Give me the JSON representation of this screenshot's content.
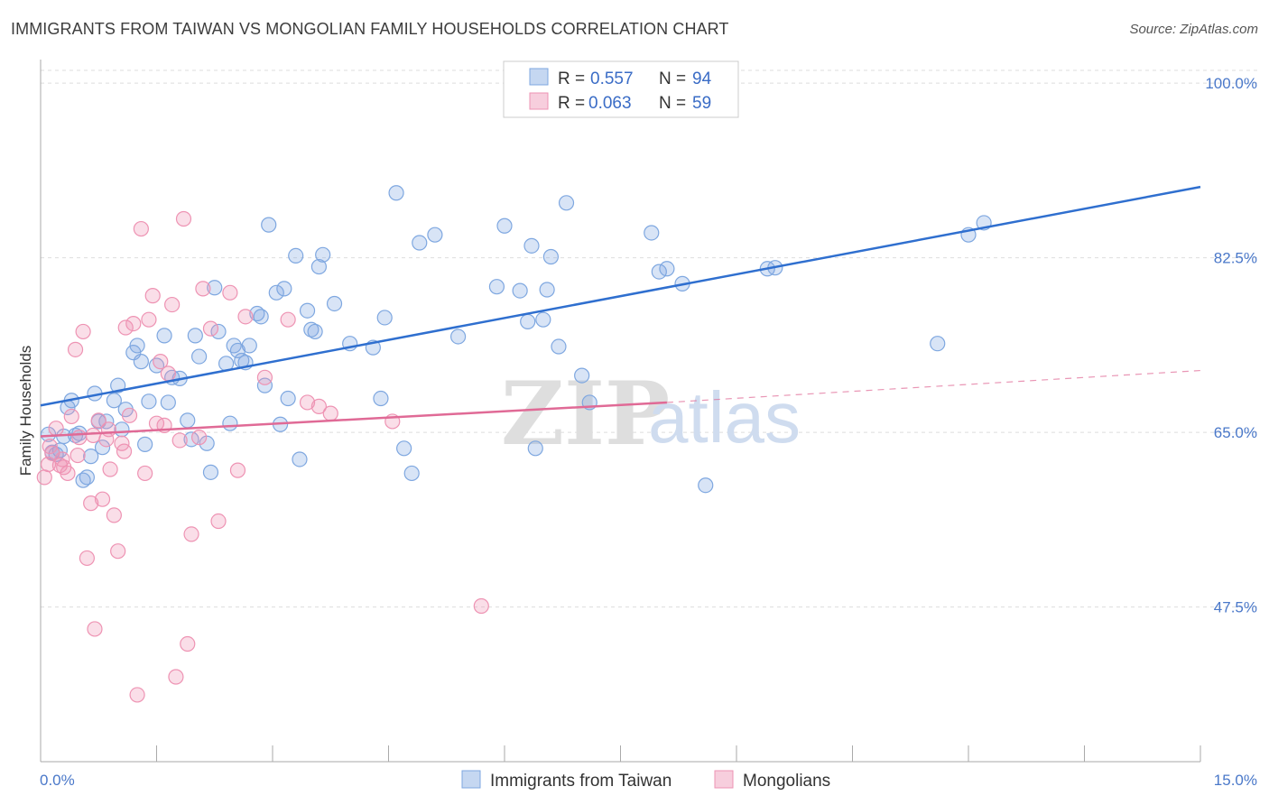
{
  "title": "IMMIGRANTS FROM TAIWAN VS MONGOLIAN FAMILY HOUSEHOLDS CORRELATION CHART",
  "source": "Source: ZipAtlas.com",
  "watermark": {
    "zip": "ZIP",
    "atlas": "atlas"
  },
  "colors": {
    "blue": "#7ea7e0",
    "blue_fill": "rgba(126,167,224,0.30)",
    "blue_line": "#2f6fcf",
    "pink": "#ee93b3",
    "pink_fill": "rgba(238,147,179,0.30)",
    "pink_line": "#e06a96",
    "grid": "#dddddd",
    "tick_label": "#4a78c9"
  },
  "legend": {
    "rows": [
      {
        "r_label": "R = ",
        "r_value": "0.557",
        "n_label": "N = ",
        "n_value": "94"
      },
      {
        "r_label": "R = ",
        "r_value": "0.063",
        "n_label": "N = ",
        "n_value": "59"
      }
    ]
  },
  "bottom_legend": [
    "Immigrants from Taiwan",
    "Mongolians"
  ],
  "chart_data": {
    "type": "scatter",
    "title": "IMMIGRANTS FROM TAIWAN VS MONGOLIAN FAMILY HOUSEHOLDS CORRELATION CHART",
    "xlabel": "",
    "ylabel": "Family Households",
    "xlim": [
      0,
      15
    ],
    "ylim": [
      32,
      102
    ],
    "x_tick_labels": [
      "0.0%",
      "15.0%"
    ],
    "y_ticks": [
      47.5,
      65.0,
      82.5,
      100.0
    ],
    "y_tick_labels": [
      "47.5%",
      "65.0%",
      "82.5%",
      "100.0%"
    ],
    "grid": "horizontal dashed",
    "legend_position": "top-center",
    "series": [
      {
        "name": "Immigrants from Taiwan",
        "r": 0.557,
        "n": 94,
        "trend": {
          "x": [
            0,
            15
          ],
          "y": [
            67.7,
            89.6
          ],
          "style": "solid"
        },
        "points": [
          [
            0.1,
            64.8
          ],
          [
            0.15,
            63.0
          ],
          [
            0.2,
            62.8
          ],
          [
            0.25,
            63.2
          ],
          [
            0.3,
            64.6
          ],
          [
            0.35,
            67.5
          ],
          [
            0.4,
            68.2
          ],
          [
            0.45,
            64.7
          ],
          [
            0.55,
            60.2
          ],
          [
            0.6,
            60.5
          ],
          [
            0.7,
            68.9
          ],
          [
            0.75,
            66.1
          ],
          [
            0.85,
            66.1
          ],
          [
            0.95,
            68.2
          ],
          [
            1.0,
            69.7
          ],
          [
            1.1,
            67.3
          ],
          [
            1.2,
            73.0
          ],
          [
            1.25,
            73.7
          ],
          [
            1.3,
            72.1
          ],
          [
            1.35,
            63.8
          ],
          [
            1.4,
            68.1
          ],
          [
            1.5,
            71.7
          ],
          [
            1.6,
            74.7
          ],
          [
            1.65,
            68.0
          ],
          [
            1.7,
            70.5
          ],
          [
            1.8,
            70.4
          ],
          [
            1.9,
            66.2
          ],
          [
            1.95,
            64.3
          ],
          [
            2.0,
            74.7
          ],
          [
            2.05,
            72.6
          ],
          [
            2.15,
            63.9
          ],
          [
            2.2,
            61.0
          ],
          [
            2.25,
            79.5
          ],
          [
            2.3,
            75.1
          ],
          [
            2.4,
            71.9
          ],
          [
            2.45,
            65.9
          ],
          [
            2.5,
            73.7
          ],
          [
            2.55,
            73.2
          ],
          [
            2.6,
            72.2
          ],
          [
            2.65,
            72.0
          ],
          [
            2.7,
            73.7
          ],
          [
            2.8,
            76.9
          ],
          [
            2.85,
            76.6
          ],
          [
            2.9,
            69.7
          ],
          [
            2.95,
            85.8
          ],
          [
            3.05,
            79.0
          ],
          [
            3.1,
            65.8
          ],
          [
            3.15,
            79.4
          ],
          [
            3.2,
            68.4
          ],
          [
            3.3,
            82.7
          ],
          [
            3.35,
            62.3
          ],
          [
            3.45,
            77.2
          ],
          [
            3.5,
            75.3
          ],
          [
            3.55,
            75.1
          ],
          [
            3.6,
            81.6
          ],
          [
            3.65,
            82.8
          ],
          [
            3.8,
            77.9
          ],
          [
            4.0,
            73.9
          ],
          [
            4.3,
            73.5
          ],
          [
            4.4,
            68.4
          ],
          [
            4.45,
            76.5
          ],
          [
            4.6,
            89.0
          ],
          [
            4.7,
            63.4
          ],
          [
            4.8,
            60.9
          ],
          [
            4.9,
            84.0
          ],
          [
            5.1,
            84.8
          ],
          [
            5.4,
            74.6
          ],
          [
            5.9,
            79.6
          ],
          [
            6.0,
            85.7
          ],
          [
            6.2,
            79.2
          ],
          [
            6.3,
            76.1
          ],
          [
            6.35,
            83.7
          ],
          [
            6.4,
            63.4
          ],
          [
            6.5,
            76.3
          ],
          [
            6.55,
            79.3
          ],
          [
            6.6,
            82.6
          ],
          [
            6.7,
            73.6
          ],
          [
            6.8,
            88.0
          ],
          [
            7.0,
            70.7
          ],
          [
            7.1,
            68.0
          ],
          [
            7.9,
            85.0
          ],
          [
            8.0,
            81.1
          ],
          [
            8.1,
            81.4
          ],
          [
            8.3,
            79.9
          ],
          [
            8.6,
            59.7
          ],
          [
            9.4,
            81.4
          ],
          [
            9.5,
            81.5
          ],
          [
            11.6,
            73.9
          ],
          [
            12.0,
            84.8
          ],
          [
            12.2,
            86.0
          ],
          [
            0.5,
            64.9
          ],
          [
            0.65,
            62.6
          ],
          [
            0.8,
            63.5
          ],
          [
            1.05,
            65.3
          ]
        ]
      },
      {
        "name": "Mongolians",
        "r": 0.063,
        "n": 59,
        "trend": {
          "x": [
            0,
            8.1
          ],
          "y": [
            64.6,
            68.0
          ],
          "style": "solid",
          "extended": {
            "x": [
              8.1,
              15
            ],
            "y": [
              68.0,
              71.2
            ],
            "style": "dashed"
          }
        },
        "points": [
          [
            0.05,
            60.5
          ],
          [
            0.1,
            61.8
          ],
          [
            0.15,
            62.9
          ],
          [
            0.2,
            65.4
          ],
          [
            0.25,
            61.7
          ],
          [
            0.3,
            61.5
          ],
          [
            0.35,
            60.9
          ],
          [
            0.4,
            66.6
          ],
          [
            0.45,
            73.3
          ],
          [
            0.5,
            64.5
          ],
          [
            0.55,
            75.1
          ],
          [
            0.6,
            52.4
          ],
          [
            0.65,
            57.9
          ],
          [
            0.7,
            45.3
          ],
          [
            0.75,
            66.2
          ],
          [
            0.8,
            58.3
          ],
          [
            0.85,
            64.3
          ],
          [
            0.9,
            61.3
          ],
          [
            0.95,
            56.7
          ],
          [
            1.0,
            53.1
          ],
          [
            1.05,
            63.9
          ],
          [
            1.1,
            75.5
          ],
          [
            1.15,
            66.7
          ],
          [
            1.2,
            75.9
          ],
          [
            1.25,
            38.7
          ],
          [
            1.3,
            85.4
          ],
          [
            1.35,
            60.9
          ],
          [
            1.4,
            76.3
          ],
          [
            1.45,
            78.7
          ],
          [
            1.5,
            65.9
          ],
          [
            1.55,
            72.1
          ],
          [
            1.6,
            65.7
          ],
          [
            1.65,
            70.9
          ],
          [
            1.7,
            77.8
          ],
          [
            1.75,
            40.5
          ],
          [
            1.8,
            64.2
          ],
          [
            1.85,
            86.4
          ],
          [
            1.9,
            43.8
          ],
          [
            1.95,
            54.8
          ],
          [
            2.05,
            64.5
          ],
          [
            2.1,
            79.4
          ],
          [
            2.2,
            75.4
          ],
          [
            2.3,
            56.1
          ],
          [
            2.45,
            79.0
          ],
          [
            2.55,
            61.2
          ],
          [
            2.65,
            76.6
          ],
          [
            2.9,
            70.5
          ],
          [
            3.2,
            76.3
          ],
          [
            3.45,
            68.0
          ],
          [
            3.6,
            67.6
          ],
          [
            3.75,
            66.9
          ],
          [
            4.55,
            66.1
          ],
          [
            5.7,
            47.6
          ],
          [
            0.12,
            63.6
          ],
          [
            0.28,
            62.3
          ],
          [
            0.48,
            62.7
          ],
          [
            0.68,
            64.7
          ],
          [
            0.88,
            65.3
          ],
          [
            1.08,
            63.1
          ]
        ]
      }
    ]
  }
}
